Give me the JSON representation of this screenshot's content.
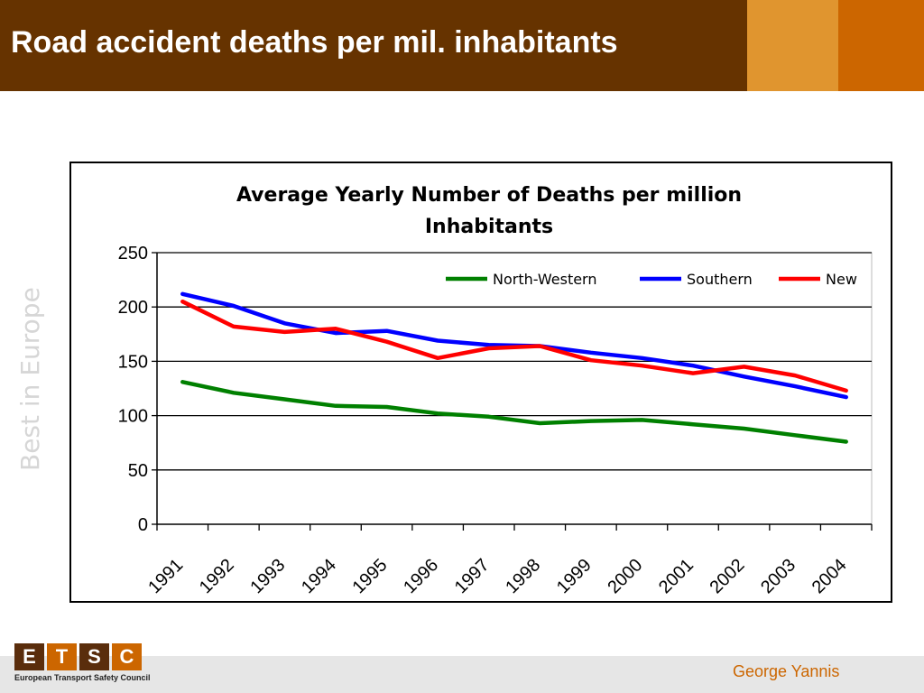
{
  "slide": {
    "title": "Road accident deaths per mil. inhabitants",
    "side_text": "Best in Europe",
    "author": "George Yannis"
  },
  "logo": {
    "letters": [
      "E",
      "T",
      "S",
      "C"
    ],
    "caption": "European Transport Safety Council",
    "colors": [
      "#5a2d0c",
      "#cc6600",
      "#5a2d0c",
      "#cc6600"
    ]
  },
  "colors": {
    "header": "#663300",
    "header_accent_1": "#e0952f",
    "header_accent_2": "#cc6600",
    "author_text": "#cc6600"
  },
  "chart_data": {
    "type": "line",
    "title_lines": [
      "Average Yearly Number of Deaths per million",
      "Inhabitants"
    ],
    "categories": [
      "1991",
      "1992",
      "1993",
      "1994",
      "1995",
      "1996",
      "1997",
      "1998",
      "1999",
      "2000",
      "2001",
      "2002",
      "2003",
      "2004"
    ],
    "yticks": [
      "0",
      "50",
      "100",
      "150",
      "200",
      "250"
    ],
    "ylim": [
      0,
      250
    ],
    "grid": true,
    "legend_position": "top-right",
    "series": [
      {
        "name": "North-Western",
        "color": "#008000",
        "values": [
          131,
          121,
          115,
          109,
          108,
          102,
          99,
          93,
          95,
          96,
          92,
          88,
          82,
          76
        ]
      },
      {
        "name": "Southern",
        "color": "#0000ff",
        "values": [
          212,
          201,
          185,
          176,
          178,
          169,
          165,
          164,
          158,
          153,
          146,
          136,
          127,
          117
        ]
      },
      {
        "name": "New",
        "color": "#ff0000",
        "values": [
          205,
          182,
          177,
          180,
          168,
          153,
          162,
          164,
          151,
          146,
          139,
          145,
          137,
          123
        ]
      }
    ]
  }
}
